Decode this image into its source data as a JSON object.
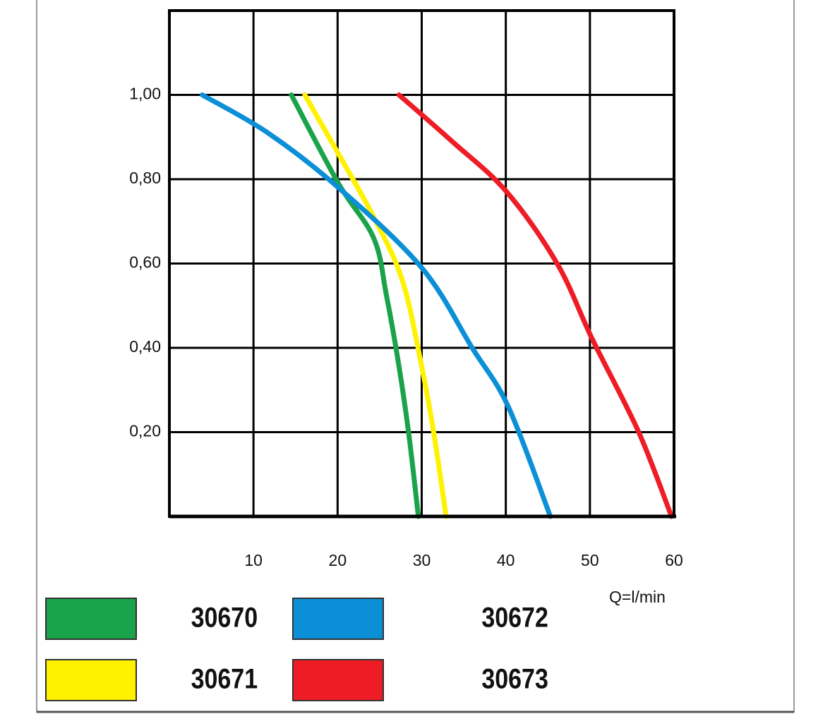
{
  "chart_data": {
    "type": "line",
    "x_label": "Q=l/min",
    "xlim": [
      0,
      60
    ],
    "ylim": [
      0,
      1.2
    ],
    "xticks": [
      10,
      20,
      30,
      40,
      50,
      60
    ],
    "yticks": [
      {
        "value": 0.2,
        "label": "0,20"
      },
      {
        "value": 0.4,
        "label": "0,40"
      },
      {
        "value": 0.6,
        "label": "0,60"
      },
      {
        "value": 0.8,
        "label": "0,80"
      },
      {
        "value": 1.0,
        "label": "1,00"
      }
    ],
    "grid": true,
    "series": [
      {
        "name": "30670",
        "color": "#1aa34a",
        "x": [
          14.5,
          20.1,
          24.3,
          25.8,
          27.3,
          28.5,
          29.6
        ],
        "values": [
          1.0,
          0.79,
          0.66,
          0.525,
          0.356,
          0.19,
          0
        ]
      },
      {
        "name": "30671",
        "color": "#fff200",
        "x": [
          16.1,
          20.1,
          24.3,
          27.7,
          30.0,
          31.5,
          32.9
        ],
        "values": [
          1.0,
          0.86,
          0.71,
          0.56,
          0.356,
          0.19,
          0
        ]
      },
      {
        "name": "30672",
        "color": "#0b8fd6",
        "x": [
          3.9,
          11.7,
          20.1,
          30.0,
          36.0,
          40.3,
          45.3
        ],
        "values": [
          1.0,
          0.91,
          0.78,
          0.59,
          0.4,
          0.26,
          0
        ]
      },
      {
        "name": "30673",
        "color": "#ee1c25",
        "x": [
          27.3,
          33.6,
          40.1,
          46.1,
          50.3,
          55.8,
          59.7
        ],
        "values": [
          1.0,
          0.89,
          0.77,
          0.6,
          0.42,
          0.2,
          0
        ]
      }
    ]
  }
}
